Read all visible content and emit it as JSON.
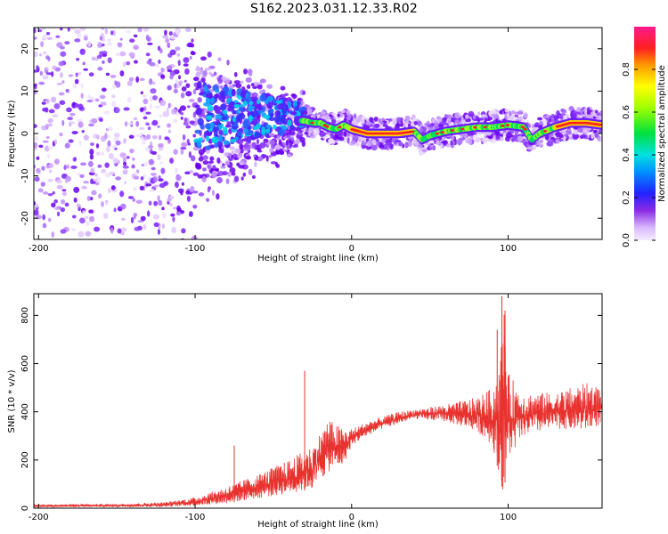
{
  "title": "S162.2023.031.12.33.R02",
  "colors": {
    "axis": "#000000",
    "snr_line": "#e8322f",
    "spec_low": "#7a20ff",
    "spec_high": "#ff2020"
  },
  "colorbar": {
    "label": "Normalized spectral amplitude",
    "ticks": [
      "0.0",
      "0.2",
      "0.4",
      "0.6",
      "0.8"
    ],
    "colormap": "hsv-rainbow (white/violet low → blue → cyan → green → yellow → red → magenta high)"
  },
  "chart_data": [
    {
      "type": "heatmap",
      "title": "",
      "xlabel": "Height of straight line (km)",
      "ylabel": "Frequency (Hz)",
      "xlim": [
        -203,
        160
      ],
      "ylim": [
        -25,
        25
      ],
      "xticks": [
        -200,
        -100,
        0,
        100
      ],
      "xtick_labels": [
        "-200",
        "-100",
        "0",
        "100"
      ],
      "yticks": [
        -20,
        -10,
        0,
        10,
        20
      ],
      "ytick_labels": [
        "-20",
        "-10",
        "0",
        "10",
        "20"
      ],
      "ridge": {
        "description": "dominant spectral peak frequency vs height",
        "x": [
          -30,
          -25,
          -20,
          -15,
          -10,
          -5,
          0,
          5,
          10,
          20,
          30,
          40,
          45,
          50,
          60,
          70,
          80,
          90,
          100,
          110,
          115,
          120,
          130,
          140,
          150,
          160
        ],
        "y": [
          3,
          2.5,
          2.5,
          1.5,
          1,
          2,
          1,
          0.5,
          0,
          0,
          0,
          0.5,
          -1.5,
          -0.5,
          0.5,
          1,
          1.5,
          1.5,
          2,
          1.5,
          -1.5,
          0,
          1.5,
          2.5,
          2.5,
          2
        ]
      }
    },
    {
      "type": "line",
      "title": "",
      "xlabel": "Height of straight line (km)",
      "ylabel": "SNR (10 * v/v)",
      "xlim": [
        -203,
        160
      ],
      "ylim": [
        0,
        890
      ],
      "xticks": [
        -200,
        -100,
        0,
        100
      ],
      "xtick_labels": [
        "-200",
        "-100",
        "0",
        "100"
      ],
      "yticks": [
        0,
        200,
        400,
        600,
        800
      ],
      "ytick_labels": [
        "0",
        "200",
        "400",
        "600",
        "800"
      ],
      "envelope": {
        "x": [
          -203,
          -150,
          -120,
          -100,
          -80,
          -60,
          -40,
          -25,
          -15,
          -5,
          0,
          10,
          20,
          30,
          40,
          60,
          80,
          90,
          95,
          97,
          100,
          110,
          130,
          150,
          160
        ],
        "lo": [
          5,
          5,
          5,
          10,
          20,
          40,
          60,
          80,
          150,
          180,
          260,
          300,
          330,
          350,
          370,
          360,
          320,
          260,
          120,
          60,
          200,
          300,
          330,
          320,
          350
        ],
        "hi": [
          15,
          18,
          25,
          45,
          90,
          140,
          200,
          260,
          370,
          330,
          330,
          360,
          380,
          400,
          410,
          430,
          460,
          500,
          620,
          880,
          560,
          480,
          480,
          520,
          500
        ]
      },
      "spikes": [
        {
          "x": -30,
          "y": 570
        },
        {
          "x": -75,
          "y": 260
        },
        {
          "x": 93,
          "y": 740
        },
        {
          "x": 96,
          "y": 880
        },
        {
          "x": 98,
          "y": 820
        }
      ]
    }
  ]
}
